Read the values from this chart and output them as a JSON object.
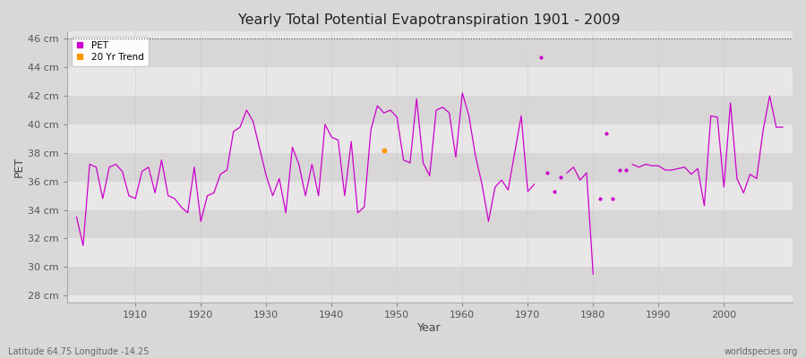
{
  "title": "Yearly Total Potential Evapotranspiration 1901 - 2009",
  "xlabel": "Year",
  "ylabel": "PET",
  "lat_lon_label": "Latitude 64.75 Longitude -14.25",
  "source_label": "worldspecies.org",
  "pet_color": "#cc00cc",
  "trend_color": "#ff9900",
  "bg_color": "#d8d8d8",
  "plot_bg_color": "#e8e6e6",
  "band_color_dark": "#d8d6d6",
  "band_color_light": "#e8e6e6",
  "ylim": [
    27.5,
    46.5
  ],
  "yticks": [
    28,
    30,
    32,
    34,
    36,
    38,
    40,
    42,
    44,
    46
  ],
  "ytick_labels": [
    "28 cm",
    "30 cm",
    "32 cm",
    "34 cm",
    "36 cm",
    "38 cm",
    "40 cm",
    "42 cm",
    "44 cm",
    "46 cm"
  ],
  "xlim": [
    1899.5,
    2010.5
  ],
  "xticks": [
    1910,
    1920,
    1930,
    1940,
    1950,
    1960,
    1970,
    1980,
    1990,
    2000
  ],
  "connected_years": [
    1901,
    1902,
    1903,
    1904,
    1905,
    1906,
    1907,
    1908,
    1909,
    1910,
    1911,
    1912,
    1913,
    1914,
    1915,
    1916,
    1917,
    1918,
    1919,
    1920,
    1921,
    1922,
    1923,
    1924,
    1925,
    1926,
    1927,
    1928,
    1929,
    1930,
    1931,
    1932,
    1933,
    1934,
    1935,
    1936,
    1937,
    1938,
    1939,
    1940,
    1941,
    1942,
    1943,
    1944,
    1945,
    1946,
    1947,
    1948,
    1949,
    1950,
    1951,
    1952,
    1953,
    1954,
    1955,
    1956,
    1957,
    1958,
    1959,
    1960,
    1961,
    1962,
    1963,
    1964,
    1965,
    1966,
    1967,
    1968,
    1969,
    1970,
    1971,
    1976,
    1977,
    1978,
    1979,
    1980,
    1986,
    1987,
    1988,
    1989,
    1990,
    1991,
    1992,
    1993,
    1994,
    1995,
    1996,
    1997,
    1998,
    1999,
    2000,
    2001,
    2002,
    2003,
    2004,
    2005,
    2006,
    2007,
    2008,
    2009
  ],
  "connected_values": [
    33.5,
    31.5,
    37.2,
    37.0,
    34.8,
    37.0,
    37.2,
    36.7,
    35.0,
    34.8,
    36.7,
    37.0,
    35.2,
    37.5,
    35.0,
    34.8,
    34.2,
    33.8,
    37.0,
    33.2,
    35.0,
    35.2,
    36.5,
    36.8,
    39.5,
    39.8,
    41.0,
    40.2,
    38.3,
    36.4,
    35.0,
    36.2,
    33.8,
    38.4,
    37.2,
    35.0,
    37.2,
    35.0,
    40.0,
    39.1,
    38.9,
    35.0,
    38.8,
    33.8,
    34.2,
    39.6,
    41.3,
    40.8,
    41.0,
    40.5,
    37.5,
    37.3,
    41.8,
    37.3,
    36.4,
    41.0,
    41.2,
    40.8,
    37.7,
    42.2,
    40.6,
    37.8,
    35.8,
    33.2,
    35.6,
    36.1,
    35.4,
    38.0,
    40.6,
    35.3,
    35.8,
    36.6,
    37.0,
    36.1,
    36.6,
    29.5,
    37.2,
    37.0,
    37.2,
    37.1,
    37.1,
    36.8,
    36.8,
    36.9,
    37.0,
    36.5,
    36.9,
    34.3,
    40.6,
    40.5,
    35.6,
    41.5,
    36.2,
    35.2,
    36.5,
    36.2,
    39.6,
    42.0,
    39.8,
    39.8
  ],
  "isolated_years": [
    1972,
    1973,
    1974,
    1975,
    1981,
    1982,
    1983,
    1984,
    1985
  ],
  "isolated_values": [
    44.7,
    36.6,
    35.3,
    36.3,
    34.8,
    39.4,
    34.8,
    36.8,
    36.8
  ],
  "trend_years": [
    1948
  ],
  "trend_values": [
    38.2
  ]
}
